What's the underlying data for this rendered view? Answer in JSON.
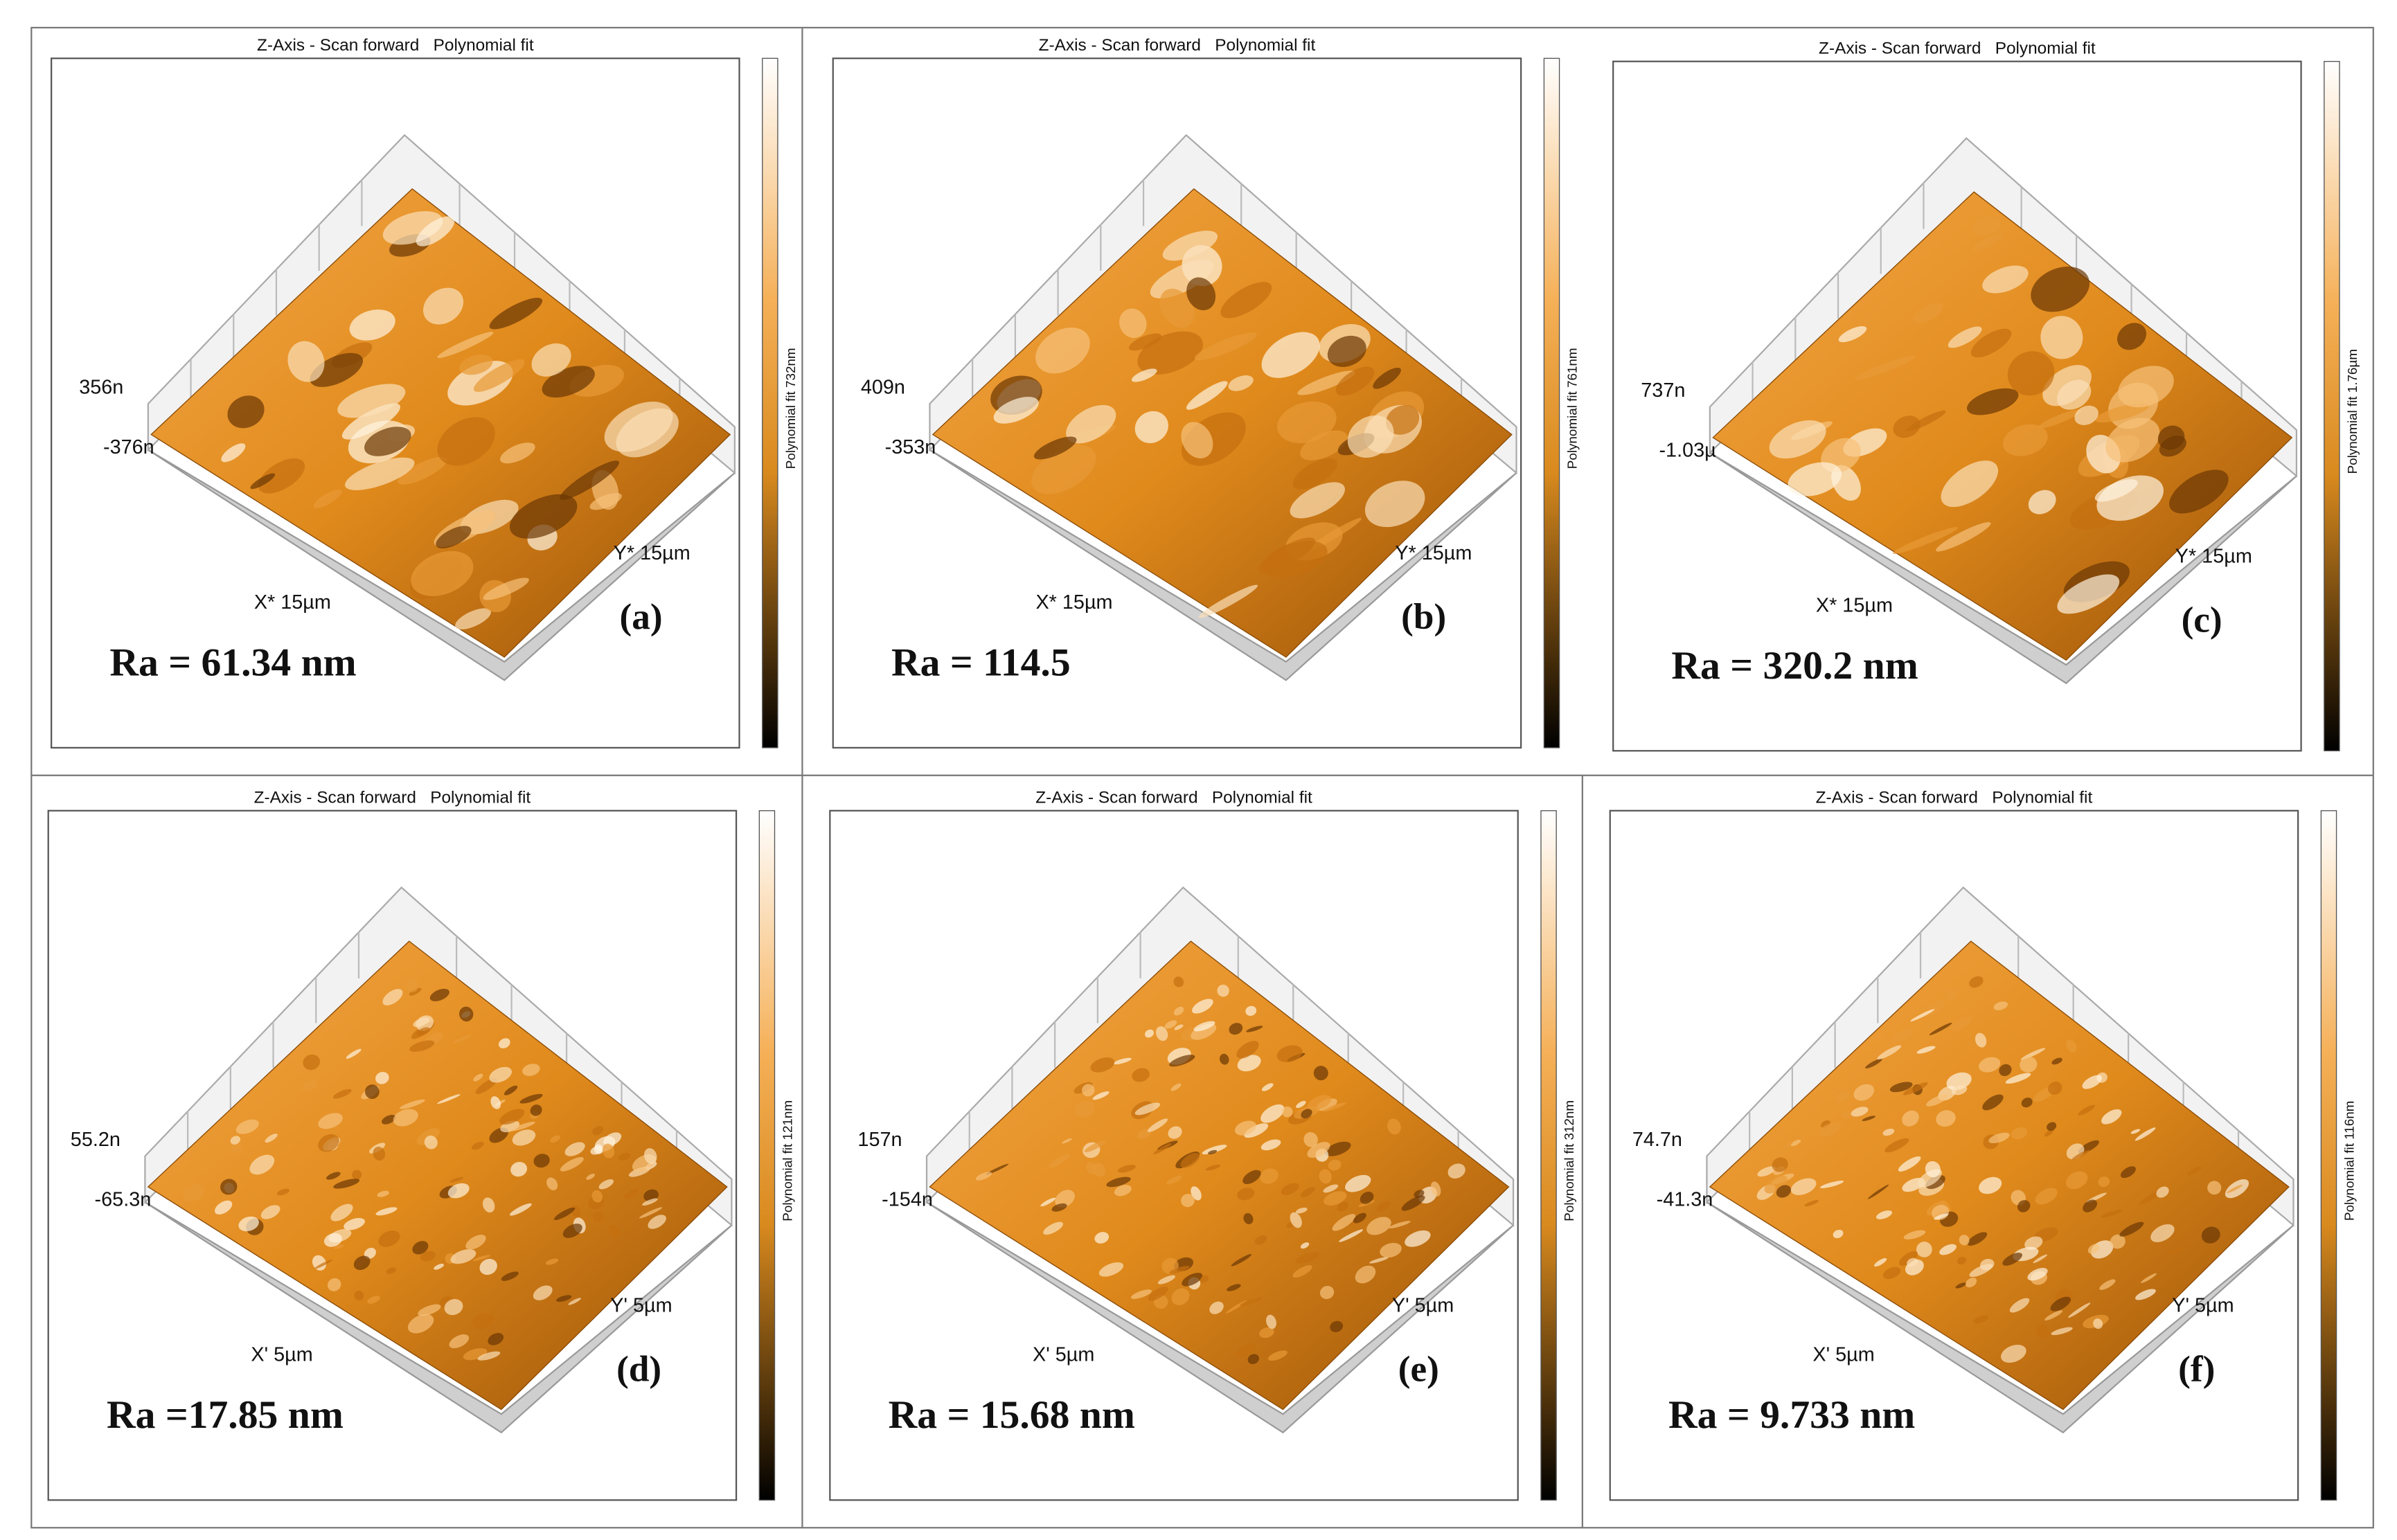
{
  "panels": [
    {
      "title": "Z-Axis - Scan forward   Polynomial fit",
      "z_max": "356n",
      "z_min": "-376n",
      "x_axis": "X* 15µm",
      "y_axis": "Y* 15µm",
      "colorbar": "Polynomial fit 732nm",
      "label": "(a)",
      "roughness": "Ra = 61.34 nm"
    },
    {
      "title": "Z-Axis - Scan forward   Polynomial fit",
      "z_max": "409n",
      "z_min": "-353n",
      "x_axis": "X* 15µm",
      "y_axis": "Y* 15µm",
      "colorbar": "Polynomial fit 761nm",
      "label": "(b)",
      "roughness": "Ra = 114.5"
    },
    {
      "title": "Z-Axis - Scan forward   Polynomial fit",
      "z_max": "737n",
      "z_min": "-1.03µ",
      "x_axis": "X* 15µm",
      "y_axis": "Y* 15µm",
      "colorbar": "Polynomial fit 1.76µm",
      "label": "(c)",
      "roughness": "Ra = 320.2 nm"
    },
    {
      "title": "Z-Axis - Scan forward   Polynomial fit",
      "z_max": "55.2n",
      "z_min": "-65.3n",
      "x_axis": "X' 5µm",
      "y_axis": "Y' 5µm",
      "colorbar": "Polynomial fit 121nm",
      "label": "(d)",
      "roughness": "Ra =17.85 nm"
    },
    {
      "title": "Z-Axis - Scan forward   Polynomial fit",
      "z_max": "157n",
      "z_min": "-154n",
      "x_axis": "X' 5µm",
      "y_axis": "Y' 5µm",
      "colorbar": "Polynomial fit 312nm",
      "label": "(e)",
      "roughness": "Ra = 15.68 nm"
    },
    {
      "title": "Z-Axis - Scan forward   Polynomial fit",
      "z_max": "74.7n",
      "z_min": "-41.3n",
      "x_axis": "X' 5µm",
      "y_axis": "Y' 5µm",
      "colorbar": "Polynomial fit 116nm",
      "label": "(f)",
      "roughness": "Ra = 9.733 nm"
    }
  ]
}
